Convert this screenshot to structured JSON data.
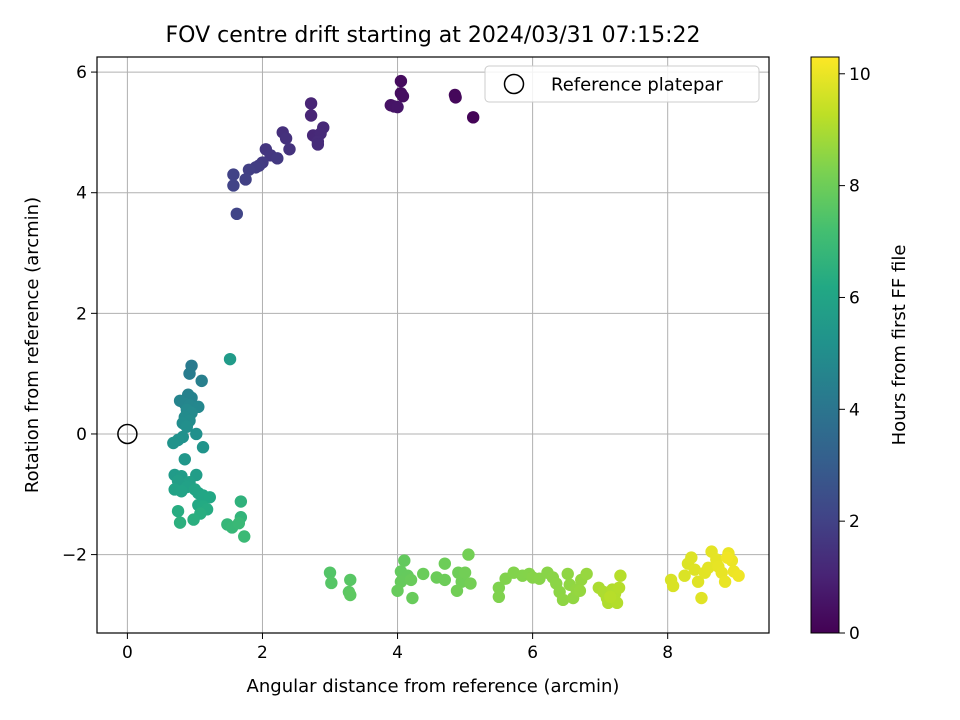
{
  "chart_data": {
    "type": "scatter",
    "title": "FOV centre drift starting at 2024/03/31 07:15:22",
    "xlabel": "Angular distance from reference (arcmin)",
    "ylabel": "Rotation from reference (arcmin)",
    "xlim": [
      -0.45,
      9.5
    ],
    "ylim": [
      -3.3,
      6.25
    ],
    "xticks": [
      0,
      2,
      4,
      6,
      8
    ],
    "yticks": [
      -2,
      0,
      2,
      4,
      6
    ],
    "xtick_labels": [
      "0",
      "2",
      "4",
      "6",
      "8"
    ],
    "ytick_labels": [
      "−2",
      "0",
      "2",
      "4",
      "6"
    ],
    "grid": true,
    "legend": {
      "placement": "top-right",
      "entries": [
        "Reference platepar"
      ]
    },
    "reference_point": {
      "label": "Reference platepar",
      "x": 0,
      "y": 0
    },
    "colorbar": {
      "label": "Hours from first FF file",
      "colormap": "viridis",
      "range": [
        0,
        10.3
      ],
      "ticks": [
        0,
        2,
        4,
        6,
        8,
        10
      ],
      "tick_labels": [
        "0",
        "2",
        "4",
        "6",
        "8",
        "10"
      ]
    },
    "points": [
      {
        "x": 4.05,
        "y": 5.85,
        "c": 0.3
      },
      {
        "x": 4.05,
        "y": 5.65,
        "c": 0.35
      },
      {
        "x": 4.08,
        "y": 5.6,
        "c": 0.4
      },
      {
        "x": 4.85,
        "y": 5.62,
        "c": 0.2
      },
      {
        "x": 4.86,
        "y": 5.58,
        "c": 0.22
      },
      {
        "x": 5.12,
        "y": 5.25,
        "c": 0.1
      },
      {
        "x": 3.9,
        "y": 5.45,
        "c": 0.5
      },
      {
        "x": 3.95,
        "y": 5.43,
        "c": 0.55
      },
      {
        "x": 4.0,
        "y": 5.42,
        "c": 0.6
      },
      {
        "x": 2.72,
        "y": 5.48,
        "c": 1.05
      },
      {
        "x": 2.72,
        "y": 5.28,
        "c": 1.1
      },
      {
        "x": 2.75,
        "y": 4.95,
        "c": 1.15
      },
      {
        "x": 2.9,
        "y": 5.08,
        "c": 1.2
      },
      {
        "x": 2.86,
        "y": 4.98,
        "c": 1.22
      },
      {
        "x": 2.82,
        "y": 4.85,
        "c": 1.25
      },
      {
        "x": 2.82,
        "y": 4.8,
        "c": 1.27
      },
      {
        "x": 2.3,
        "y": 5.0,
        "c": 1.4
      },
      {
        "x": 2.35,
        "y": 4.9,
        "c": 1.45
      },
      {
        "x": 2.4,
        "y": 4.72,
        "c": 1.5
      },
      {
        "x": 2.05,
        "y": 4.72,
        "c": 1.6
      },
      {
        "x": 2.12,
        "y": 4.62,
        "c": 1.65
      },
      {
        "x": 2.22,
        "y": 4.57,
        "c": 1.7
      },
      {
        "x": 2.0,
        "y": 4.5,
        "c": 1.75
      },
      {
        "x": 1.95,
        "y": 4.45,
        "c": 1.8
      },
      {
        "x": 1.9,
        "y": 4.42,
        "c": 1.85
      },
      {
        "x": 1.8,
        "y": 4.38,
        "c": 1.9
      },
      {
        "x": 1.75,
        "y": 4.22,
        "c": 1.95
      },
      {
        "x": 1.57,
        "y": 4.3,
        "c": 2.0
      },
      {
        "x": 1.57,
        "y": 4.12,
        "c": 2.05
      },
      {
        "x": 1.62,
        "y": 3.65,
        "c": 2.1
      },
      {
        "x": 1.52,
        "y": 1.24,
        "c": 5.6
      },
      {
        "x": 0.95,
        "y": 1.13,
        "c": 4.2
      },
      {
        "x": 0.92,
        "y": 1.0,
        "c": 4.3
      },
      {
        "x": 1.1,
        "y": 0.88,
        "c": 4.4
      },
      {
        "x": 0.9,
        "y": 0.65,
        "c": 4.5
      },
      {
        "x": 0.95,
        "y": 0.6,
        "c": 4.55
      },
      {
        "x": 0.78,
        "y": 0.55,
        "c": 4.6
      },
      {
        "x": 0.85,
        "y": 0.5,
        "c": 4.65
      },
      {
        "x": 0.92,
        "y": 0.48,
        "c": 4.7
      },
      {
        "x": 1.05,
        "y": 0.45,
        "c": 4.75
      },
      {
        "x": 0.88,
        "y": 0.4,
        "c": 4.8
      },
      {
        "x": 0.95,
        "y": 0.35,
        "c": 4.85
      },
      {
        "x": 0.85,
        "y": 0.28,
        "c": 4.9
      },
      {
        "x": 0.92,
        "y": 0.22,
        "c": 4.95
      },
      {
        "x": 0.82,
        "y": 0.18,
        "c": 5.0
      },
      {
        "x": 0.88,
        "y": 0.12,
        "c": 5.05
      },
      {
        "x": 1.02,
        "y": 0.0,
        "c": 5.1
      },
      {
        "x": 0.82,
        "y": -0.05,
        "c": 5.15
      },
      {
        "x": 0.75,
        "y": -0.1,
        "c": 5.2
      },
      {
        "x": 0.68,
        "y": -0.15,
        "c": 5.25
      },
      {
        "x": 1.12,
        "y": -0.22,
        "c": 5.3
      },
      {
        "x": 0.85,
        "y": -0.42,
        "c": 5.4
      },
      {
        "x": 0.7,
        "y": -0.68,
        "c": 5.6
      },
      {
        "x": 0.8,
        "y": -0.7,
        "c": 5.65
      },
      {
        "x": 1.02,
        "y": -0.68,
        "c": 5.7
      },
      {
        "x": 0.75,
        "y": -0.78,
        "c": 5.75
      },
      {
        "x": 0.92,
        "y": -0.8,
        "c": 5.8
      },
      {
        "x": 0.88,
        "y": -0.88,
        "c": 5.85
      },
      {
        "x": 0.7,
        "y": -0.92,
        "c": 5.9
      },
      {
        "x": 0.8,
        "y": -0.95,
        "c": 5.95
      },
      {
        "x": 1.0,
        "y": -0.92,
        "c": 6.0
      },
      {
        "x": 1.05,
        "y": -0.98,
        "c": 6.05
      },
      {
        "x": 1.12,
        "y": -1.02,
        "c": 6.1
      },
      {
        "x": 1.22,
        "y": -1.05,
        "c": 6.15
      },
      {
        "x": 1.68,
        "y": -1.12,
        "c": 6.6
      },
      {
        "x": 1.05,
        "y": -1.18,
        "c": 6.2
      },
      {
        "x": 1.12,
        "y": -1.2,
        "c": 6.25
      },
      {
        "x": 1.18,
        "y": -1.25,
        "c": 6.3
      },
      {
        "x": 0.75,
        "y": -1.28,
        "c": 6.35
      },
      {
        "x": 1.08,
        "y": -1.32,
        "c": 6.4
      },
      {
        "x": 1.68,
        "y": -1.38,
        "c": 6.7
      },
      {
        "x": 0.98,
        "y": -1.42,
        "c": 6.45
      },
      {
        "x": 0.78,
        "y": -1.47,
        "c": 6.5
      },
      {
        "x": 1.48,
        "y": -1.5,
        "c": 6.8
      },
      {
        "x": 1.55,
        "y": -1.55,
        "c": 6.85
      },
      {
        "x": 1.65,
        "y": -1.48,
        "c": 6.9
      },
      {
        "x": 1.73,
        "y": -1.7,
        "c": 6.95
      },
      {
        "x": 3.0,
        "y": -2.3,
        "c": 7.5
      },
      {
        "x": 3.02,
        "y": -2.47,
        "c": 7.55
      },
      {
        "x": 3.3,
        "y": -2.42,
        "c": 7.6
      },
      {
        "x": 3.28,
        "y": -2.62,
        "c": 7.65
      },
      {
        "x": 3.3,
        "y": -2.67,
        "c": 7.7
      },
      {
        "x": 4.1,
        "y": -2.1,
        "c": 7.8
      },
      {
        "x": 4.05,
        "y": -2.28,
        "c": 7.82
      },
      {
        "x": 4.15,
        "y": -2.35,
        "c": 7.84
      },
      {
        "x": 4.05,
        "y": -2.45,
        "c": 7.86
      },
      {
        "x": 4.0,
        "y": -2.6,
        "c": 7.88
      },
      {
        "x": 4.22,
        "y": -2.72,
        "c": 7.9
      },
      {
        "x": 4.2,
        "y": -2.42,
        "c": 7.92
      },
      {
        "x": 4.38,
        "y": -2.32,
        "c": 7.94
      },
      {
        "x": 4.58,
        "y": -2.38,
        "c": 7.96
      },
      {
        "x": 4.7,
        "y": -2.42,
        "c": 7.98
      },
      {
        "x": 4.7,
        "y": -2.15,
        "c": 8.0
      },
      {
        "x": 4.9,
        "y": -2.3,
        "c": 8.02
      },
      {
        "x": 4.95,
        "y": -2.45,
        "c": 8.04
      },
      {
        "x": 4.88,
        "y": -2.6,
        "c": 8.06
      },
      {
        "x": 5.0,
        "y": -2.3,
        "c": 8.08
      },
      {
        "x": 5.05,
        "y": -2.0,
        "c": 8.1
      },
      {
        "x": 5.08,
        "y": -2.48,
        "c": 8.12
      },
      {
        "x": 5.5,
        "y": -2.55,
        "c": 8.3
      },
      {
        "x": 5.5,
        "y": -2.7,
        "c": 8.32
      },
      {
        "x": 5.6,
        "y": -2.4,
        "c": 8.34
      },
      {
        "x": 5.72,
        "y": -2.3,
        "c": 8.36
      },
      {
        "x": 5.85,
        "y": -2.35,
        "c": 8.38
      },
      {
        "x": 5.95,
        "y": -2.32,
        "c": 8.4
      },
      {
        "x": 6.0,
        "y": -2.38,
        "c": 8.42
      },
      {
        "x": 6.1,
        "y": -2.4,
        "c": 8.44
      },
      {
        "x": 6.22,
        "y": -2.3,
        "c": 8.46
      },
      {
        "x": 6.3,
        "y": -2.38,
        "c": 8.48
      },
      {
        "x": 6.35,
        "y": -2.48,
        "c": 8.5
      },
      {
        "x": 6.4,
        "y": -2.62,
        "c": 8.52
      },
      {
        "x": 6.45,
        "y": -2.75,
        "c": 8.54
      },
      {
        "x": 6.52,
        "y": -2.32,
        "c": 8.56
      },
      {
        "x": 6.55,
        "y": -2.5,
        "c": 8.58
      },
      {
        "x": 6.6,
        "y": -2.72,
        "c": 8.6
      },
      {
        "x": 6.65,
        "y": -2.58,
        "c": 8.62
      },
      {
        "x": 6.72,
        "y": -2.42,
        "c": 8.64
      },
      {
        "x": 6.7,
        "y": -2.6,
        "c": 8.66
      },
      {
        "x": 6.8,
        "y": -2.32,
        "c": 8.68
      },
      {
        "x": 6.98,
        "y": -2.55,
        "c": 9.0
      },
      {
        "x": 7.05,
        "y": -2.62,
        "c": 9.02
      },
      {
        "x": 7.1,
        "y": -2.72,
        "c": 9.04
      },
      {
        "x": 7.12,
        "y": -2.8,
        "c": 9.06
      },
      {
        "x": 7.18,
        "y": -2.58,
        "c": 9.08
      },
      {
        "x": 7.22,
        "y": -2.65,
        "c": 9.1
      },
      {
        "x": 7.25,
        "y": -2.8,
        "c": 9.12
      },
      {
        "x": 7.28,
        "y": -2.55,
        "c": 9.14
      },
      {
        "x": 7.3,
        "y": -2.35,
        "c": 9.16
      },
      {
        "x": 7.15,
        "y": -2.7,
        "c": 9.18
      },
      {
        "x": 8.05,
        "y": -2.42,
        "c": 9.7
      },
      {
        "x": 8.08,
        "y": -2.52,
        "c": 9.72
      },
      {
        "x": 8.25,
        "y": -2.35,
        "c": 9.74
      },
      {
        "x": 8.3,
        "y": -2.15,
        "c": 9.76
      },
      {
        "x": 8.35,
        "y": -2.05,
        "c": 9.78
      },
      {
        "x": 8.4,
        "y": -2.25,
        "c": 9.8
      },
      {
        "x": 8.45,
        "y": -2.45,
        "c": 9.82
      },
      {
        "x": 8.5,
        "y": -2.72,
        "c": 9.84
      },
      {
        "x": 8.55,
        "y": -2.3,
        "c": 9.86
      },
      {
        "x": 8.6,
        "y": -2.22,
        "c": 9.88
      },
      {
        "x": 8.65,
        "y": -1.95,
        "c": 9.9
      },
      {
        "x": 8.72,
        "y": -2.08,
        "c": 9.92
      },
      {
        "x": 8.75,
        "y": -2.2,
        "c": 9.94
      },
      {
        "x": 8.8,
        "y": -2.3,
        "c": 9.96
      },
      {
        "x": 8.85,
        "y": -2.45,
        "c": 9.98
      },
      {
        "x": 8.9,
        "y": -1.98,
        "c": 10.0
      },
      {
        "x": 8.95,
        "y": -2.1,
        "c": 10.02
      },
      {
        "x": 8.98,
        "y": -2.28,
        "c": 10.05
      },
      {
        "x": 9.05,
        "y": -2.35,
        "c": 10.08
      },
      {
        "x": 8.88,
        "y": -2.05,
        "c": 10.1
      }
    ]
  }
}
